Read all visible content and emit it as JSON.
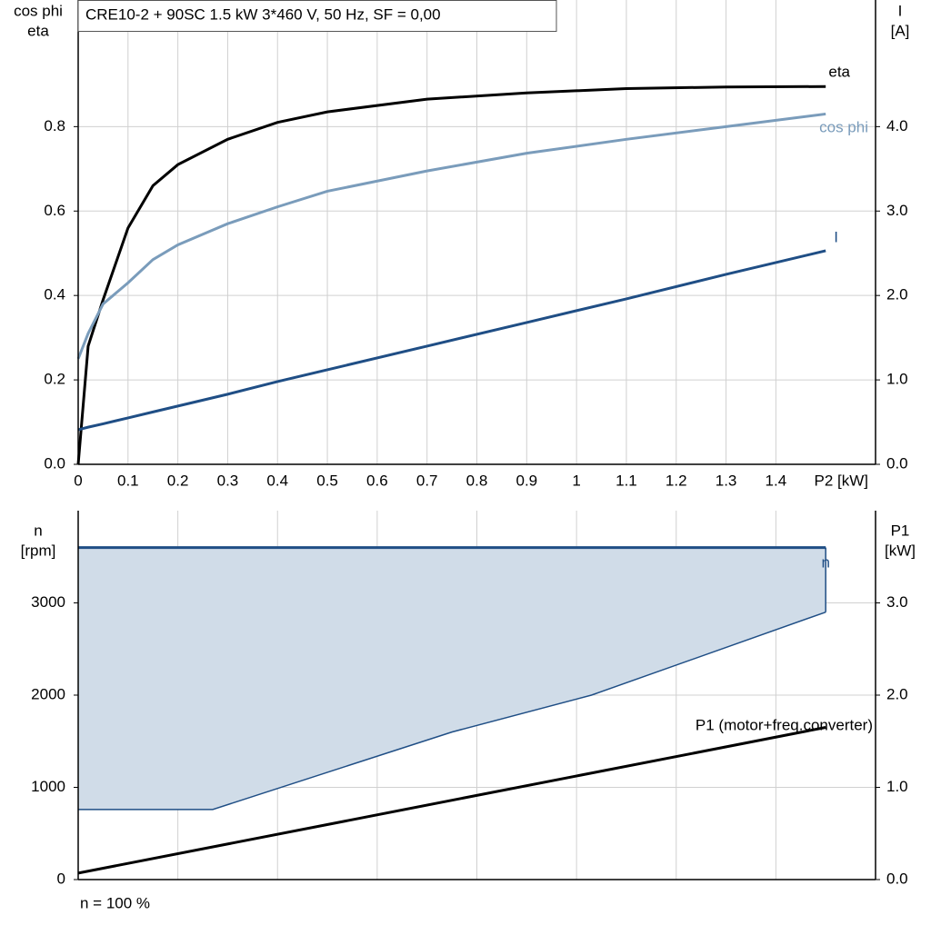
{
  "chart_data": [
    {
      "type": "line",
      "title": "CRE10-2 + 90SC   1.5 kW   3*460 V, 50 Hz, SF = 0,00",
      "ylabel": [
        "cos phi",
        "eta"
      ],
      "y2label": [
        "I",
        "[A]"
      ],
      "xlabel": "P2 [kW]",
      "xlim": [
        0,
        1.6
      ],
      "xticks": [
        0,
        0.1,
        0.2,
        0.3,
        0.4,
        0.5,
        0.6,
        0.7,
        0.8,
        0.9,
        1.0,
        1.1,
        1.2,
        1.3,
        1.4
      ],
      "ylim": [
        0,
        1.1
      ],
      "yticks": [
        {
          "value": 0,
          "label": "0.0"
        },
        0.2,
        0.4,
        0.6,
        0.8
      ],
      "y2lim": [
        0,
        5.5
      ],
      "y2ticks": [
        {
          "value": 0,
          "label": "0.0"
        },
        {
          "value": 1,
          "label": "1.0"
        },
        {
          "value": 2,
          "label": "2.0"
        },
        {
          "value": 3,
          "label": "3.0"
        },
        {
          "value": 4,
          "label": "4.0"
        }
      ],
      "grid": true,
      "show_xtick_labels": true,
      "x": [
        0,
        0.02,
        0.05,
        0.1,
        0.15,
        0.2,
        0.3,
        0.4,
        0.5,
        0.7,
        0.9,
        1.1,
        1.3,
        1.5
      ],
      "series": [
        {
          "name": "eta",
          "color": "#000000",
          "values": [
            0,
            0.28,
            0.39,
            0.56,
            0.66,
            0.71,
            0.77,
            0.81,
            0.835,
            0.865,
            0.88,
            0.89,
            0.894,
            0.895
          ]
        },
        {
          "name": "cos phi",
          "color": "#7a9cbb",
          "values": [
            0.25,
            0.31,
            0.38,
            0.43,
            0.485,
            0.52,
            0.57,
            0.61,
            0.647,
            0.695,
            0.737,
            0.77,
            0.8,
            0.83
          ]
        },
        {
          "name": "I",
          "color": "#1f4e85",
          "axis": "y2",
          "values": [
            0.41,
            0.44,
            0.48,
            0.55,
            0.62,
            0.69,
            0.83,
            0.98,
            1.12,
            1.4,
            1.68,
            1.96,
            2.25,
            2.53
          ]
        }
      ]
    },
    {
      "type": "line",
      "ylabel": [
        "n",
        "[rpm]"
      ],
      "y2label": [
        "P1",
        "[kW]"
      ],
      "note": "n = 100 %",
      "xlim": [
        0,
        1.6
      ],
      "xticks": [
        0.2,
        0.4,
        0.6,
        0.8,
        1.0,
        1.2,
        1.4
      ],
      "ylim": [
        0,
        4000
      ],
      "yticks": [
        0,
        1000,
        2000,
        3000
      ],
      "y2lim": [
        0,
        4.0
      ],
      "y2ticks": [
        {
          "value": 0,
          "label": "0.0"
        },
        {
          "value": 1,
          "label": "1.0"
        },
        {
          "value": 2,
          "label": "2.0"
        },
        {
          "value": 3,
          "label": "3.0"
        }
      ],
      "grid": true,
      "show_xtick_labels": false,
      "series": [
        {
          "name": "n",
          "color": "#1f4e85",
          "fill": "#d0dce8",
          "x": [
            0,
            0.27,
            0.75,
            1.03,
            1.5
          ],
          "values": [
            3600,
            3600,
            3600,
            3600,
            3600
          ],
          "lower_values": [
            760,
            760,
            1600,
            2000,
            2900
          ]
        },
        {
          "name": "P1 (motor+freq.converter)",
          "color": "#000000",
          "axis": "y2",
          "x": [
            0,
            1.5
          ],
          "values": [
            0.07,
            1.65
          ]
        }
      ]
    }
  ]
}
